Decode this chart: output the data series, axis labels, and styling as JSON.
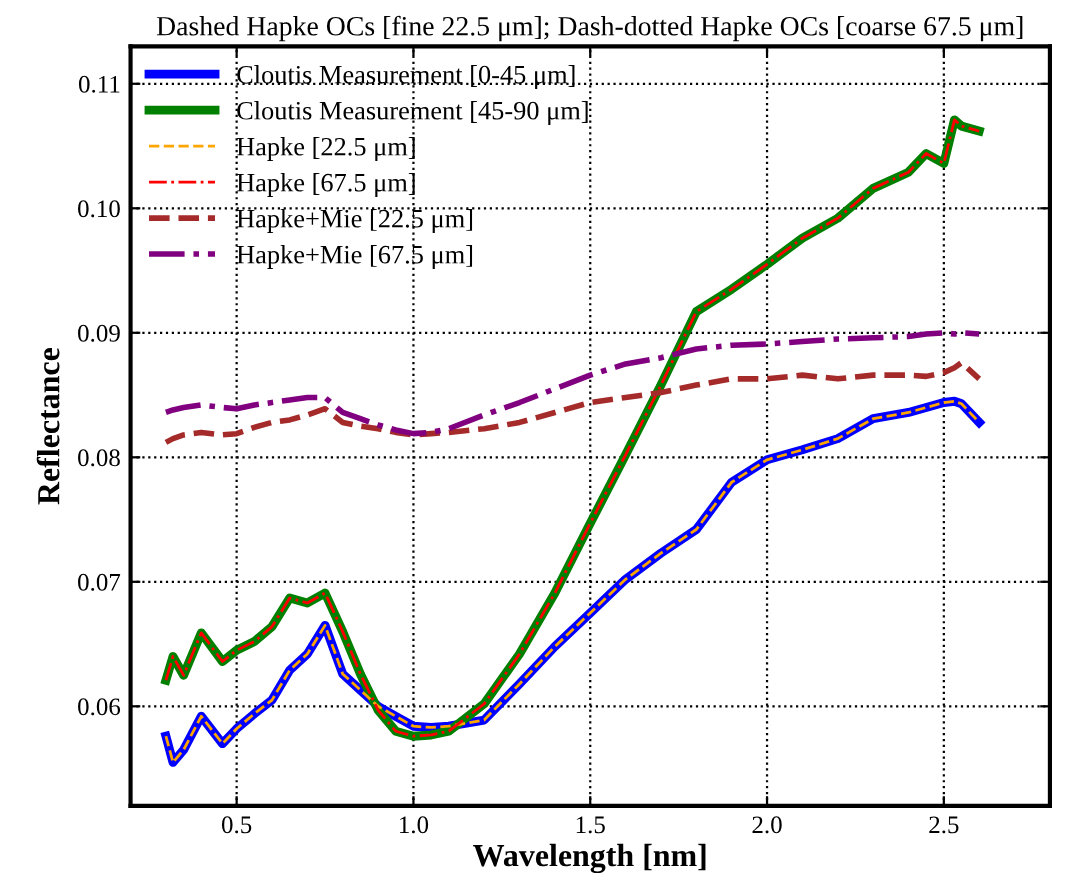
{
  "chart_data": {
    "type": "line",
    "title": "Dashed Hapke OCs [fine 22.5 μm]; Dash-dotted Hapke OCs [coarse 67.5 μm]",
    "xlabel": "Wavelength [nm]",
    "ylabel": "Reflectance",
    "x": [
      0.3,
      0.32,
      0.35,
      0.4,
      0.46,
      0.5,
      0.55,
      0.6,
      0.65,
      0.7,
      0.75,
      0.8,
      0.85,
      0.9,
      0.95,
      1.0,
      1.05,
      1.1,
      1.2,
      1.3,
      1.4,
      1.5,
      1.6,
      1.7,
      1.8,
      1.9,
      2.0,
      2.1,
      2.2,
      2.3,
      2.4,
      2.45,
      2.5,
      2.53,
      2.55,
      2.6
    ],
    "series": [
      {
        "name": "Cloutis Measurement [0-45 μm]",
        "color": "#0000ff",
        "line_style": "solid",
        "values": [
          0.0576,
          0.0555,
          0.0565,
          0.0592,
          0.057,
          0.0582,
          0.0594,
          0.0605,
          0.0629,
          0.0642,
          0.0665,
          0.0626,
          0.0613,
          0.06,
          0.0592,
          0.0584,
          0.0583,
          0.0584,
          0.0589,
          0.0618,
          0.0648,
          0.0675,
          0.0702,
          0.0723,
          0.0742,
          0.078,
          0.0798,
          0.0806,
          0.0815,
          0.0831,
          0.0836,
          0.084,
          0.0844,
          0.0845,
          0.0843,
          0.0828
        ]
      },
      {
        "name": "Cloutis Measurement [45-90 μm]",
        "color": "#008000",
        "line_style": "solid",
        "values": [
          0.0621,
          0.064,
          0.0625,
          0.0659,
          0.0636,
          0.0645,
          0.0652,
          0.0664,
          0.0687,
          0.0683,
          0.0691,
          0.066,
          0.0626,
          0.0597,
          0.058,
          0.0576,
          0.0577,
          0.058,
          0.0602,
          0.0642,
          0.0691,
          0.0747,
          0.0802,
          0.0858,
          0.0917,
          0.0935,
          0.0955,
          0.0976,
          0.0992,
          0.1016,
          0.1029,
          0.1044,
          0.1036,
          0.1071,
          0.1066,
          0.1062
        ]
      },
      {
        "name": "Hapke [22.5 μm]",
        "color": "#ffa500",
        "line_style": "dashed",
        "values": [
          0.0576,
          0.0555,
          0.0565,
          0.0592,
          0.057,
          0.0582,
          0.0594,
          0.0605,
          0.0629,
          0.0642,
          0.0665,
          0.0626,
          0.0613,
          0.06,
          0.0592,
          0.0584,
          0.0583,
          0.0584,
          0.0589,
          0.0618,
          0.0648,
          0.0675,
          0.0702,
          0.0723,
          0.0742,
          0.078,
          0.0798,
          0.0806,
          0.0815,
          0.0831,
          0.0836,
          0.084,
          0.0844,
          0.0845,
          0.0843,
          0.0828
        ]
      },
      {
        "name": "Hapke [67.5 μm]",
        "color": "#ff0000",
        "line_style": "dashdot",
        "values": [
          0.0621,
          0.064,
          0.0625,
          0.0659,
          0.0636,
          0.0645,
          0.0652,
          0.0664,
          0.0687,
          0.0683,
          0.0691,
          0.066,
          0.0626,
          0.0597,
          0.058,
          0.0576,
          0.0577,
          0.058,
          0.0602,
          0.0642,
          0.0691,
          0.0747,
          0.0802,
          0.0858,
          0.0917,
          0.0935,
          0.0955,
          0.0976,
          0.0992,
          0.1016,
          0.1029,
          0.1044,
          0.1036,
          0.1071,
          0.1066,
          0.1062
        ]
      },
      {
        "name": "Hapke+Mie [22.5 μm]",
        "color": "#a52a2a",
        "line_style": "dashed",
        "values": [
          0.0812,
          0.0815,
          0.0818,
          0.082,
          0.0818,
          0.0819,
          0.0824,
          0.0828,
          0.083,
          0.0834,
          0.0839,
          0.0828,
          0.0825,
          0.0823,
          0.082,
          0.0818,
          0.0819,
          0.082,
          0.0823,
          0.0828,
          0.0836,
          0.0844,
          0.0848,
          0.0852,
          0.0858,
          0.0863,
          0.0863,
          0.0866,
          0.0863,
          0.0866,
          0.0866,
          0.0865,
          0.0868,
          0.0872,
          0.0876,
          0.0863
        ]
      },
      {
        "name": "Hapke+Mie [67.5 μm]",
        "color": "#800080",
        "line_style": "dashdot",
        "values": [
          0.0836,
          0.0838,
          0.084,
          0.0842,
          0.084,
          0.0839,
          0.0842,
          0.0844,
          0.0846,
          0.0848,
          0.0848,
          0.0836,
          0.0831,
          0.0826,
          0.0822,
          0.0819,
          0.082,
          0.0823,
          0.0834,
          0.0844,
          0.0855,
          0.0866,
          0.0875,
          0.088,
          0.0887,
          0.089,
          0.0891,
          0.0893,
          0.0895,
          0.0896,
          0.0897,
          0.0899,
          0.09,
          0.0899,
          0.09,
          0.0899
        ]
      }
    ],
    "xlim": [
      0.2,
      2.8
    ],
    "ylim": [
      0.052,
      0.113
    ],
    "xticks": [
      0.5,
      {
        "value": 1.0,
        "label": "1.0"
      },
      1.5,
      {
        "value": 2.0,
        "label": "2.0"
      },
      2.5
    ],
    "yticks": [
      0.06,
      0.07,
      0.08,
      0.09,
      {
        "value": 0.1,
        "label": "0.10"
      },
      0.11
    ],
    "grid": true,
    "legend": "top left",
    "marker": "none"
  }
}
